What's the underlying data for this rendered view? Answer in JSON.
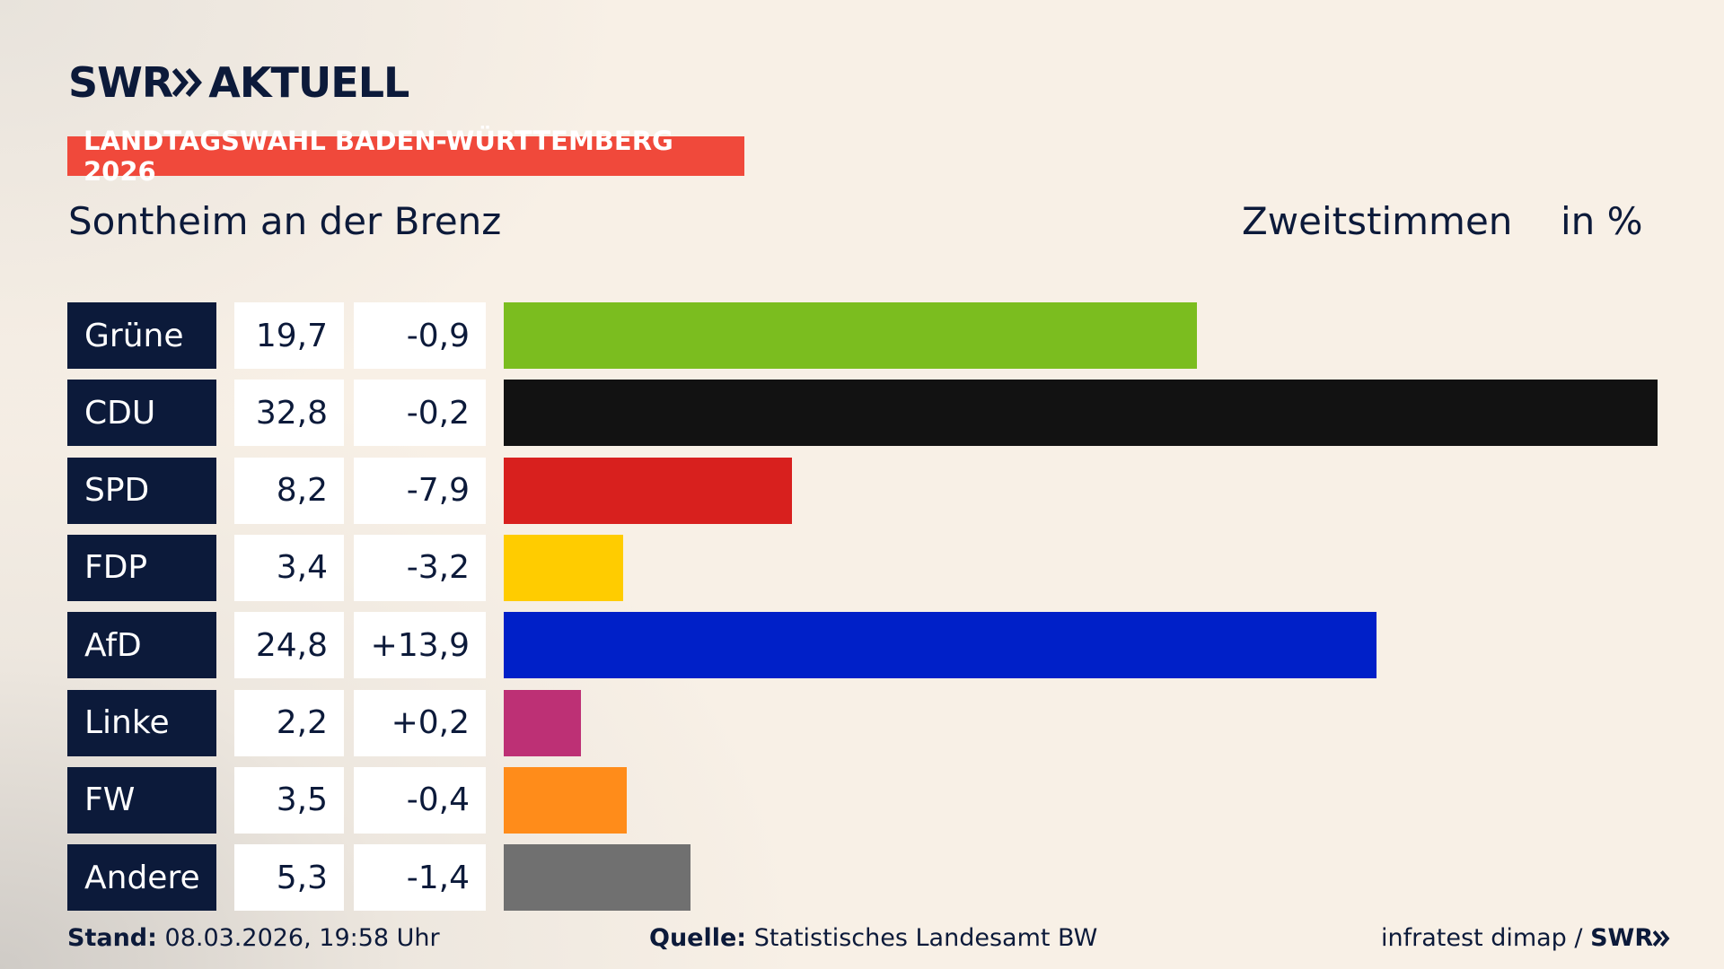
{
  "header": {
    "brand": "SWR",
    "product": "AKTUELL",
    "banner": "LANDTAGSWAHL BADEN-WÜRTTEMBERG 2026"
  },
  "chart_data": {
    "type": "bar",
    "title": "Sontheim an der Brenz",
    "subtitle": "Zweitstimmen",
    "unit": "in %",
    "categories": [
      "Grüne",
      "CDU",
      "SPD",
      "FDP",
      "AfD",
      "Linke",
      "FW",
      "Andere"
    ],
    "values": [
      19.7,
      32.8,
      8.2,
      3.4,
      24.8,
      2.2,
      3.5,
      5.3
    ],
    "value_labels": [
      "19,7",
      "32,8",
      "8,2",
      "3,4",
      "24,8",
      "2,2",
      "3,5",
      "5,3"
    ],
    "changes": [
      "-0,9",
      "-0,2",
      "-7,9",
      "-3,2",
      "+13,9",
      "+0,2",
      "-0,4",
      "-1,4"
    ],
    "colors": [
      "#7bbd1f",
      "#121212",
      "#d8201e",
      "#ffcc00",
      "#0020c8",
      "#bd3075",
      "#ff8c1a",
      "#707070"
    ]
  },
  "footer": {
    "stand_label": "Stand:",
    "stand": "08.03.2026, 19:58 Uhr",
    "source_label": "Quelle:",
    "source": "Statistisches Landesamt BW",
    "credit": "infratest dimap /",
    "credit_brand": "SWR"
  }
}
